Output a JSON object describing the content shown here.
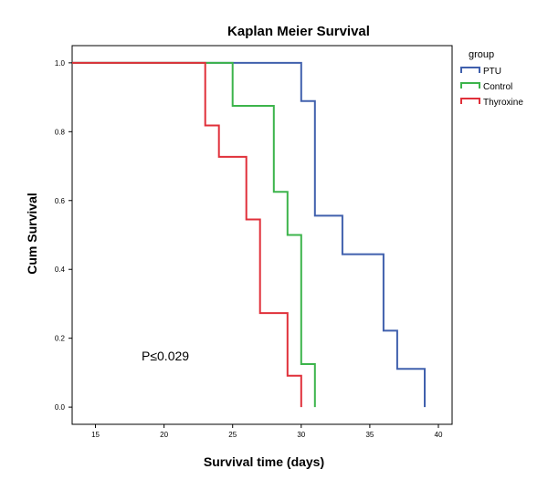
{
  "chart_data": {
    "type": "line",
    "title": "Kaplan Meier Survival",
    "xlabel": "Survival time (days)",
    "ylabel": "Cum Survival",
    "xlim": [
      13.3,
      41.0
    ],
    "ylim": [
      -0.05,
      1.05
    ],
    "x_ticks": [
      15,
      20,
      25,
      30,
      35,
      40
    ],
    "x_tick_labels": [
      "15",
      "20",
      "25",
      "30",
      "35",
      "40"
    ],
    "y_ticks": [
      0.0,
      0.2,
      0.4,
      0.6,
      0.8,
      1.0
    ],
    "y_tick_labels": [
      "0.0",
      "0.2",
      "0.4",
      "0.6",
      "0.8",
      "1.0"
    ],
    "grid": false,
    "legend": {
      "title": "group",
      "position": "top-right",
      "entries": [
        "PTU",
        "Control",
        "Thyroxine"
      ]
    },
    "annotation": "P≤0.029",
    "series": [
      {
        "name": "PTU",
        "color": "#4060ad",
        "steps": [
          [
            13.3,
            1.0
          ],
          [
            30,
            1.0
          ],
          [
            30,
            0.889
          ],
          [
            31,
            0.889
          ],
          [
            31,
            0.556
          ],
          [
            33,
            0.556
          ],
          [
            33,
            0.444
          ],
          [
            36,
            0.444
          ],
          [
            36,
            0.222
          ],
          [
            37,
            0.222
          ],
          [
            37,
            0.111
          ],
          [
            39,
            0.111
          ],
          [
            39,
            0.0
          ]
        ]
      },
      {
        "name": "Control",
        "color": "#3cb44b",
        "steps": [
          [
            13.3,
            1.0
          ],
          [
            25,
            1.0
          ],
          [
            25,
            0.875
          ],
          [
            28,
            0.875
          ],
          [
            28,
            0.625
          ],
          [
            29,
            0.625
          ],
          [
            29,
            0.5
          ],
          [
            30,
            0.5
          ],
          [
            30,
            0.125
          ],
          [
            31,
            0.125
          ],
          [
            31,
            0.0
          ]
        ]
      },
      {
        "name": "Thyroxine",
        "color": "#e0303a",
        "steps": [
          [
            13.3,
            1.0
          ],
          [
            23,
            1.0
          ],
          [
            23,
            0.818
          ],
          [
            24,
            0.818
          ],
          [
            24,
            0.727
          ],
          [
            26,
            0.727
          ],
          [
            26,
            0.545
          ],
          [
            27,
            0.545
          ],
          [
            27,
            0.273
          ],
          [
            29,
            0.273
          ],
          [
            29,
            0.091
          ],
          [
            30,
            0.091
          ],
          [
            30,
            0.0
          ]
        ]
      }
    ]
  }
}
